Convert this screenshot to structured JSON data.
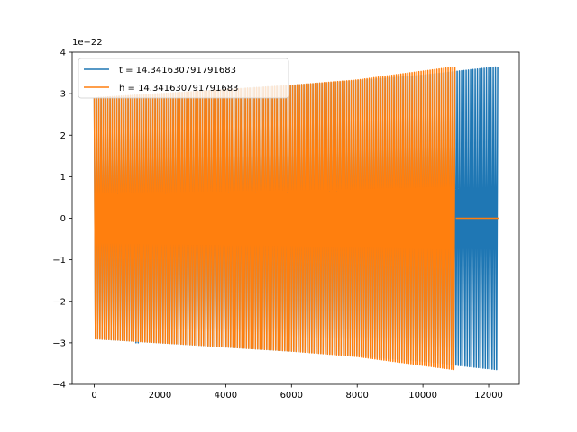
{
  "chart_data": {
    "type": "line",
    "offset_label": "1e−22",
    "exponent": -22,
    "xlim": [
      -674,
      12932
    ],
    "ylim": [
      -4.0,
      4.0
    ],
    "x_ticks": [
      0,
      2000,
      4000,
      6000,
      8000,
      10000,
      12000
    ],
    "x_tick_labels": [
      "0",
      "2000",
      "4000",
      "6000",
      "8000",
      "10000",
      "12000"
    ],
    "y_ticks": [
      -4,
      -3,
      -2,
      -1,
      0,
      1,
      2,
      3,
      4
    ],
    "y_tick_labels": [
      "−4",
      "−3",
      "−2",
      "−1",
      "0",
      "1",
      "2",
      "3",
      "4"
    ],
    "grid": false,
    "legend_position": "top-left",
    "series": [
      {
        "name": "t = 14.341630791791683",
        "color": "#1f77b4",
        "x_start": 0,
        "x_end": 12300,
        "amplitude_start": 2.9,
        "amplitude_end": 3.65,
        "envelope_points": [
          [
            0,
            2.9
          ],
          [
            2000,
            3.0
          ],
          [
            4000,
            3.1
          ],
          [
            6000,
            3.2
          ],
          [
            8000,
            3.32
          ],
          [
            10000,
            3.45
          ],
          [
            12300,
            3.65
          ]
        ],
        "min_dip": {
          "x": 1300,
          "y": -3.0
        }
      },
      {
        "name": "h = 14.341630791791683",
        "color": "#ff7f0e",
        "x_start": 0,
        "x_end": 11000,
        "amplitude_start": 2.9,
        "amplitude_end": 3.65,
        "envelope_points": [
          [
            0,
            2.9
          ],
          [
            2000,
            3.0
          ],
          [
            4000,
            3.1
          ],
          [
            6000,
            3.2
          ],
          [
            8000,
            3.33
          ],
          [
            11000,
            3.65
          ]
        ],
        "flat_after": {
          "x_from": 11000,
          "x_to": 12300,
          "y": 0
        }
      }
    ]
  }
}
